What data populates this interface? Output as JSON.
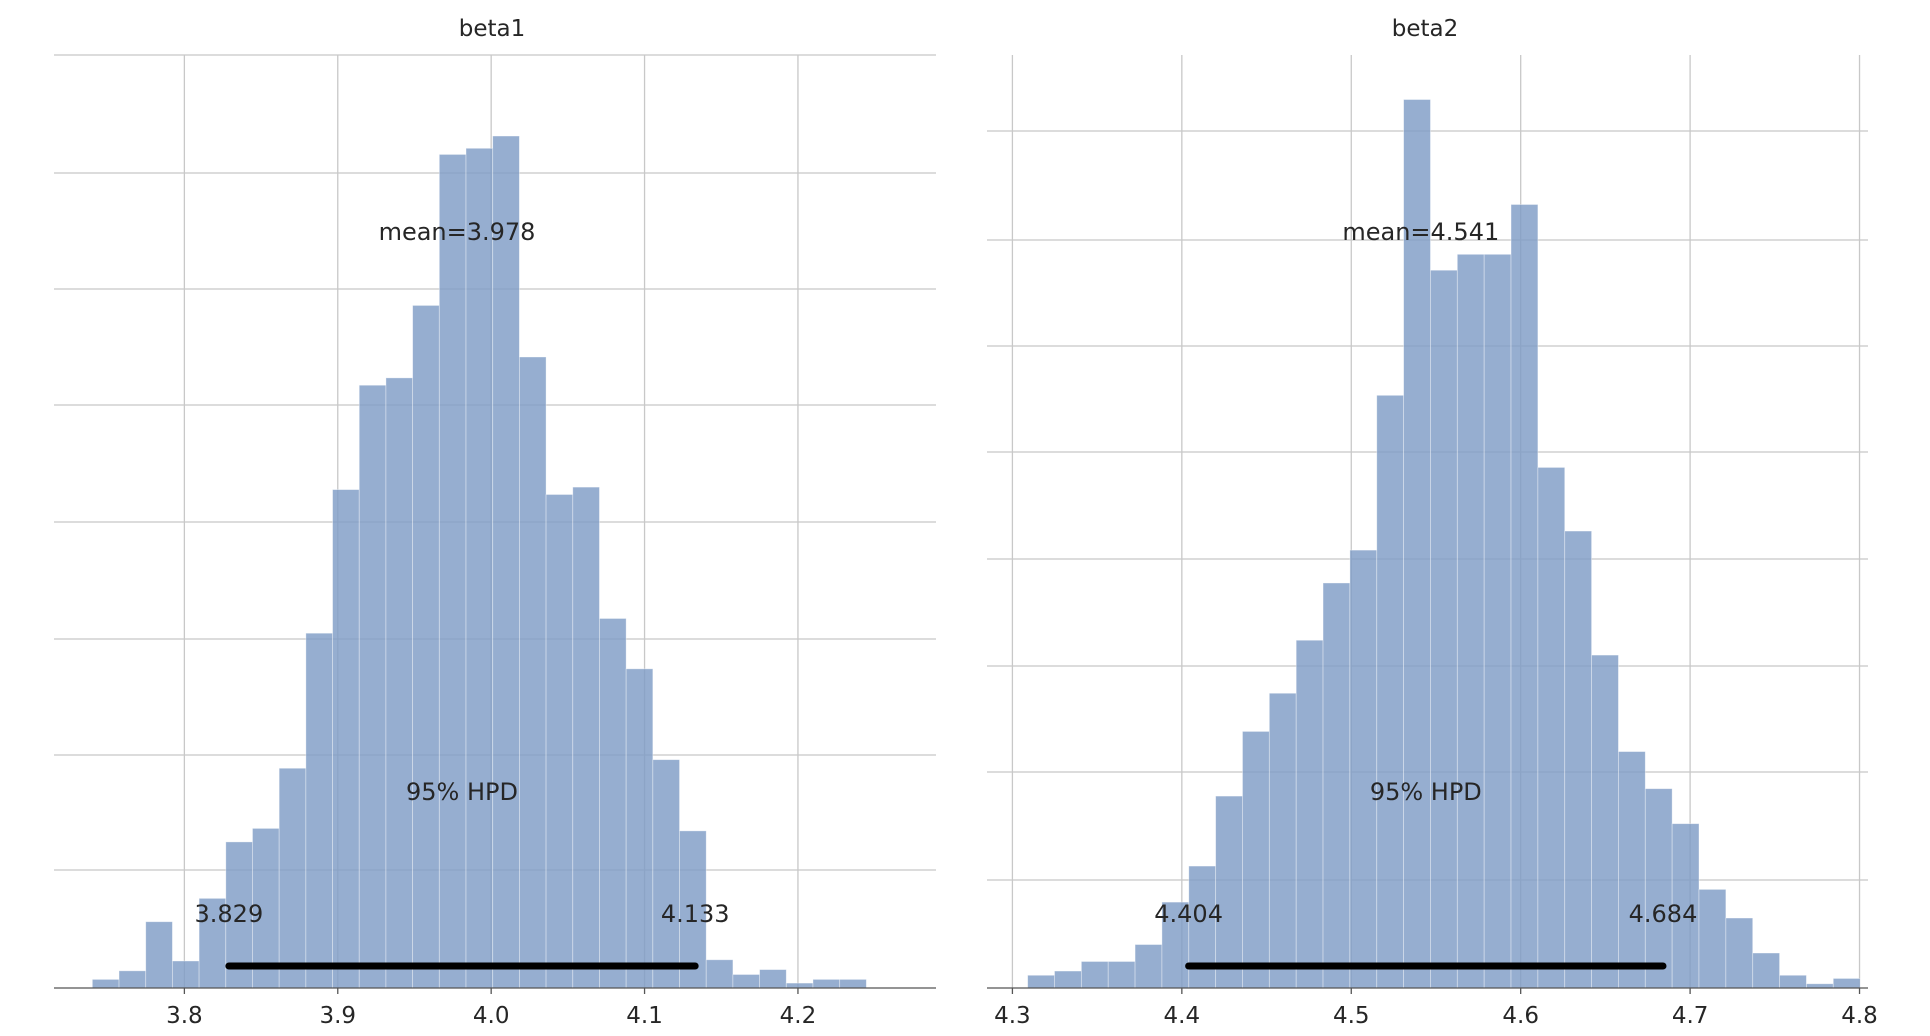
{
  "colors": {
    "bar": "#7f9cc6",
    "grid": "#c8c8c8",
    "hpd_line": "#000000",
    "text": "#262626",
    "axis": "#555555"
  },
  "chart_data": [
    {
      "type": "bar",
      "title": "beta1",
      "xlabel": "",
      "ylabel": "",
      "xlim": [
        3.715,
        4.29
      ],
      "ylim": [
        0,
        76
      ],
      "xticks": [
        3.8,
        3.9,
        4.0,
        4.1,
        4.2
      ],
      "xtick_labels": [
        "3.8",
        "3.9",
        "4.0",
        "4.1",
        "4.2"
      ],
      "grid": true,
      "bins": {
        "start": 3.74,
        "width": 0.0174
      },
      "values": [
        0.7,
        1.4,
        5.4,
        2.2,
        7.3,
        11.9,
        13.0,
        17.9,
        28.9,
        40.6,
        49.1,
        49.7,
        55.6,
        67.9,
        68.4,
        69.4,
        51.4,
        40.2,
        40.8,
        30.1,
        26.0,
        18.6,
        12.8,
        2.3,
        1.1,
        1.5,
        0.4,
        0.7,
        0.7
      ],
      "mean_label": "mean=3.978",
      "hpd_label": "95% HPD",
      "hpd": [
        3.829,
        4.133
      ],
      "hpd_low_label": "3.829",
      "hpd_high_label": "4.133"
    },
    {
      "type": "bar",
      "title": "beta2",
      "xlabel": "",
      "ylabel": "",
      "xlim": [
        4.285,
        4.805
      ],
      "ylim": [
        0,
        88
      ],
      "xticks": [
        4.3,
        4.4,
        4.5,
        4.6,
        4.7,
        4.8
      ],
      "xtick_labels": [
        "4.3",
        "4.4",
        "4.5",
        "4.6",
        "4.7",
        "4.8"
      ],
      "grid": true,
      "bins": {
        "start": 4.309,
        "width": 0.01585
      },
      "values": [
        1.2,
        1.6,
        2.5,
        2.5,
        4.1,
        8.1,
        11.5,
        18.1,
        24.2,
        27.8,
        32.8,
        38.2,
        41.3,
        55.9,
        83.8,
        67.7,
        69.2,
        69.2,
        73.9,
        49.1,
        43.1,
        31.4,
        22.3,
        18.8,
        15.5,
        9.3,
        6.6,
        3.3,
        1.2,
        0.4,
        0.9
      ],
      "mean_label": "mean=4.541",
      "hpd_label": "95% HPD",
      "hpd": [
        4.404,
        4.684
      ],
      "hpd_low_label": "4.404",
      "hpd_high_label": "4.684"
    }
  ]
}
